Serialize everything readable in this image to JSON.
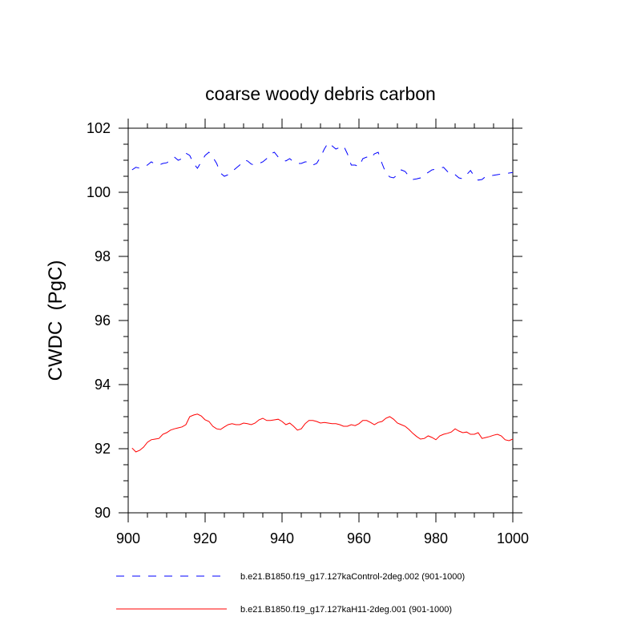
{
  "chart_data": {
    "type": "line",
    "title": "coarse woody debris carbon",
    "ylabel": "CWDC  (PgC)",
    "xlim": [
      900,
      1000
    ],
    "xticks": [
      900,
      920,
      940,
      960,
      980,
      1000
    ],
    "xminorticks": [
      905,
      910,
      915,
      925,
      930,
      935,
      945,
      950,
      955,
      965,
      970,
      975,
      985,
      990,
      995
    ],
    "ylim": [
      90,
      102
    ],
    "yticks": [
      90,
      92,
      94,
      96,
      98,
      100,
      102
    ],
    "yminorticks": [
      90.5,
      91,
      91.5,
      92.5,
      93,
      93.5,
      94.5,
      95,
      95.5,
      96.5,
      97,
      97.5,
      98.5,
      99,
      99.5,
      100.5,
      101,
      101.5
    ],
    "x": [
      901,
      902,
      903,
      904,
      905,
      906,
      907,
      908,
      909,
      910,
      911,
      912,
      913,
      914,
      915,
      916,
      917,
      918,
      919,
      920,
      921,
      922,
      923,
      924,
      925,
      926,
      927,
      928,
      929,
      930,
      931,
      932,
      933,
      934,
      935,
      936,
      937,
      938,
      939,
      940,
      941,
      942,
      943,
      944,
      945,
      946,
      947,
      948,
      949,
      950,
      951,
      952,
      953,
      954,
      955,
      956,
      957,
      958,
      959,
      960,
      961,
      962,
      963,
      964,
      965,
      966,
      967,
      968,
      969,
      970,
      971,
      972,
      973,
      974,
      975,
      976,
      977,
      978,
      979,
      980,
      981,
      982,
      983,
      984,
      985,
      986,
      987,
      988,
      989,
      990,
      991,
      992,
      993,
      994,
      995,
      996,
      997,
      998,
      999,
      1000
    ],
    "series": [
      {
        "name": "b.e21.B1850.f19_g17.127kaControl-2deg.002 (901-1000)",
        "color": "#0000ff",
        "dash": true,
        "values": [
          100.7,
          100.78,
          100.75,
          100.8,
          100.85,
          100.95,
          100.88,
          100.85,
          100.9,
          100.92,
          101.0,
          101.1,
          101.0,
          101.05,
          101.22,
          101.15,
          100.9,
          100.75,
          100.95,
          101.15,
          101.25,
          101.1,
          100.9,
          100.6,
          100.5,
          100.55,
          100.65,
          100.75,
          100.85,
          101.0,
          100.98,
          100.88,
          100.85,
          100.9,
          100.95,
          101.05,
          101.2,
          101.25,
          101.1,
          101.0,
          100.98,
          101.05,
          100.95,
          100.9,
          100.9,
          100.95,
          100.95,
          100.85,
          100.9,
          101.1,
          101.35,
          101.55,
          101.45,
          101.35,
          101.4,
          101.45,
          101.2,
          100.85,
          100.85,
          100.8,
          101.05,
          101.1,
          101.05,
          101.2,
          101.25,
          100.9,
          100.6,
          100.48,
          100.45,
          100.55,
          100.7,
          100.65,
          100.5,
          100.4,
          100.42,
          100.45,
          100.55,
          100.62,
          100.7,
          100.72,
          100.75,
          100.78,
          100.65,
          100.55,
          100.55,
          100.45,
          100.42,
          100.55,
          100.68,
          100.5,
          100.38,
          100.4,
          100.5,
          100.52,
          100.53,
          100.55,
          100.57,
          100.58,
          100.6,
          100.62
        ]
      },
      {
        "name": "b.e21.B1850.f19_g17.127kaH11-2deg.001 (901-1000)",
        "color": "#ff0000",
        "dash": false,
        "values": [
          92.02,
          91.9,
          91.95,
          92.05,
          92.2,
          92.28,
          92.3,
          92.32,
          92.45,
          92.5,
          92.58,
          92.62,
          92.65,
          92.68,
          92.75,
          93.0,
          93.05,
          93.08,
          93.02,
          92.9,
          92.85,
          92.7,
          92.62,
          92.6,
          92.68,
          92.75,
          92.78,
          92.75,
          92.75,
          92.8,
          92.78,
          92.75,
          92.8,
          92.9,
          92.95,
          92.88,
          92.88,
          92.9,
          92.92,
          92.85,
          92.75,
          92.8,
          92.7,
          92.58,
          92.62,
          92.78,
          92.88,
          92.88,
          92.85,
          92.8,
          92.82,
          92.8,
          92.78,
          92.78,
          92.75,
          92.7,
          92.7,
          92.75,
          92.72,
          92.78,
          92.88,
          92.88,
          92.82,
          92.75,
          92.82,
          92.85,
          92.95,
          93.0,
          92.92,
          92.8,
          92.75,
          92.7,
          92.6,
          92.48,
          92.38,
          92.3,
          92.32,
          92.4,
          92.35,
          92.28,
          92.4,
          92.45,
          92.48,
          92.52,
          92.62,
          92.55,
          92.5,
          92.52,
          92.45,
          92.45,
          92.5,
          92.32,
          92.35,
          92.38,
          92.42,
          92.45,
          92.4,
          92.28,
          92.25,
          92.3
        ]
      }
    ]
  }
}
